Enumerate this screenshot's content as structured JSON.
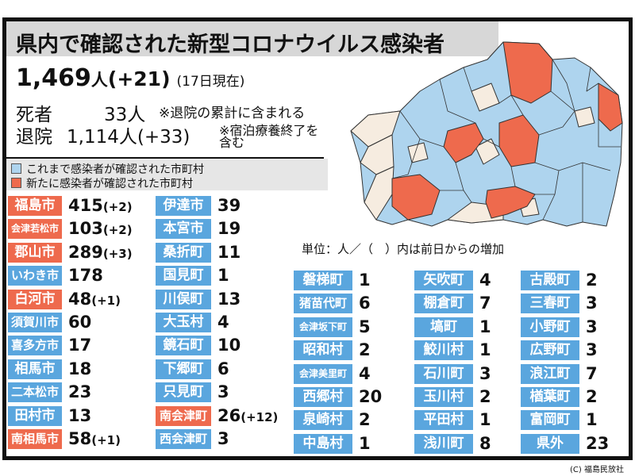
{
  "title": "県内で確認された新型コロナウイルス感染者",
  "summary": {
    "total": "1,469",
    "total_unit": "人",
    "total_delta": "(+21)",
    "as_of": "(17日現在)",
    "deaths_label": "死者",
    "deaths_value": "33人",
    "deaths_note": "※退院の累計に含まれる",
    "recovered_label": "退院",
    "recovered_value": "1,114人(+33)",
    "recovered_note": "※宿泊療養終了を含む"
  },
  "legend": {
    "existing": "これまで感染者が確認された市町村",
    "new": "新たに感染者が確認された市町村"
  },
  "colors": {
    "existing": "#aed4ee",
    "new": "#ee6a4d",
    "none": "#f6ece0",
    "label_blue": "#5aa6de",
    "label_orange": "#ee6a4d"
  },
  "units_note": "単位：人／（　）内は前日からの増加",
  "credit": "(C) 福島民放社",
  "chart_data": {
    "type": "table",
    "title": "県内で確認された新型コロナウイルス感染者",
    "columns": [
      [
        {
          "name": "福島市",
          "value": 415,
          "delta": "(+2)",
          "new": true
        },
        {
          "name": "会津若松市",
          "value": 103,
          "delta": "(+2)",
          "new": true
        },
        {
          "name": "郡山市",
          "value": 289,
          "delta": "(+3)",
          "new": true
        },
        {
          "name": "いわき市",
          "value": 178,
          "delta": "",
          "new": false
        },
        {
          "name": "白河市",
          "value": 48,
          "delta": "(+1)",
          "new": true
        },
        {
          "name": "須賀川市",
          "value": 60,
          "delta": "",
          "new": false
        },
        {
          "name": "喜多方市",
          "value": 17,
          "delta": "",
          "new": false
        },
        {
          "name": "相馬市",
          "value": 18,
          "delta": "",
          "new": false
        },
        {
          "name": "二本松市",
          "value": 23,
          "delta": "",
          "new": false
        },
        {
          "name": "田村市",
          "value": 13,
          "delta": "",
          "new": false
        },
        {
          "name": "南相馬市",
          "value": 58,
          "delta": "(+1)",
          "new": true
        }
      ],
      [
        {
          "name": "伊達市",
          "value": 39,
          "delta": "",
          "new": false
        },
        {
          "name": "本宮市",
          "value": 19,
          "delta": "",
          "new": false
        },
        {
          "name": "桑折町",
          "value": 11,
          "delta": "",
          "new": false
        },
        {
          "name": "国見町",
          "value": 1,
          "delta": "",
          "new": false
        },
        {
          "name": "川俣町",
          "value": 13,
          "delta": "",
          "new": false
        },
        {
          "name": "大玉村",
          "value": 4,
          "delta": "",
          "new": false
        },
        {
          "name": "鏡石町",
          "value": 10,
          "delta": "",
          "new": false
        },
        {
          "name": "下郷町",
          "value": 6,
          "delta": "",
          "new": false
        },
        {
          "name": "只見町",
          "value": 3,
          "delta": "",
          "new": false
        },
        {
          "name": "南会津町",
          "value": 26,
          "delta": "(+12)",
          "new": true
        },
        {
          "name": "西会津町",
          "value": 3,
          "delta": "",
          "new": false
        }
      ],
      [
        {
          "name": "磐梯町",
          "value": 1,
          "delta": "",
          "new": false
        },
        {
          "name": "猪苗代町",
          "value": 6,
          "delta": "",
          "new": false
        },
        {
          "name": "会津坂下町",
          "value": 5,
          "delta": "",
          "new": false
        },
        {
          "name": "昭和村",
          "value": 2,
          "delta": "",
          "new": false
        },
        {
          "name": "会津美里町",
          "value": 4,
          "delta": "",
          "new": false
        },
        {
          "name": "西郷村",
          "value": 20,
          "delta": "",
          "new": false
        },
        {
          "name": "泉崎村",
          "value": 2,
          "delta": "",
          "new": false
        },
        {
          "name": "中島村",
          "value": 1,
          "delta": "",
          "new": false
        }
      ],
      [
        {
          "name": "矢吹町",
          "value": 4,
          "delta": "",
          "new": false
        },
        {
          "name": "棚倉町",
          "value": 7,
          "delta": "",
          "new": false
        },
        {
          "name": "塙町",
          "value": 1,
          "delta": "",
          "new": false
        },
        {
          "name": "鮫川村",
          "value": 1,
          "delta": "",
          "new": false
        },
        {
          "name": "石川町",
          "value": 3,
          "delta": "",
          "new": false
        },
        {
          "name": "玉川村",
          "value": 2,
          "delta": "",
          "new": false
        },
        {
          "name": "平田村",
          "value": 1,
          "delta": "",
          "new": false
        },
        {
          "name": "浅川町",
          "value": 8,
          "delta": "",
          "new": false
        }
      ],
      [
        {
          "name": "古殿町",
          "value": 2,
          "delta": "",
          "new": false
        },
        {
          "name": "三春町",
          "value": 3,
          "delta": "",
          "new": false
        },
        {
          "name": "小野町",
          "value": 3,
          "delta": "",
          "new": false
        },
        {
          "name": "広野町",
          "value": 3,
          "delta": "",
          "new": false
        },
        {
          "name": "浪江町",
          "value": 7,
          "delta": "",
          "new": false
        },
        {
          "name": "楢葉町",
          "value": 2,
          "delta": "",
          "new": false
        },
        {
          "name": "富岡町",
          "value": 1,
          "delta": "",
          "new": false
        },
        {
          "name": "県外",
          "value": 23,
          "delta": "",
          "new": false
        }
      ]
    ]
  }
}
